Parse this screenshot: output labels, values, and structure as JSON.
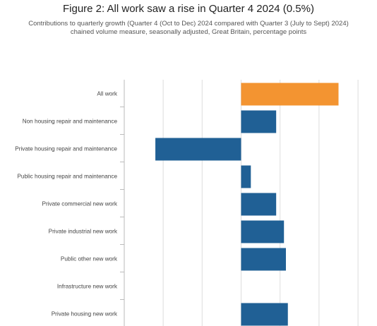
{
  "header": {
    "title": "Figure 2: All work saw a rise in Quarter 4 2024 (0.5%)",
    "subtitle_line1": "Contributions to quarterly growth (Quarter 4 (Oct to Dec) 2024 compared with Quarter 3 (July to Sept) 2024)",
    "subtitle_line2": "chained volume measure, seasonally adjusted, Great Britain, percentage points"
  },
  "colors": {
    "highlight": "#F39431",
    "bar": "#206095",
    "grid": "#dddddd",
    "axis": "#bbbbbb"
  },
  "chart_data": {
    "type": "bar",
    "orientation": "horizontal",
    "title": "Figure 2: All work saw a rise in Quarter 4 2024 (0.5%)",
    "categories": [
      "All work",
      "Non housing repair and maintenance",
      "Private housing repair and maintenance",
      "Public housing repair and maintenance",
      "Private commercial new work",
      "Private industrial new work",
      "Public other new work",
      "Infrastructure new work",
      "Private housing new work"
    ],
    "values": [
      0.5,
      0.18,
      -0.44,
      0.05,
      0.18,
      0.22,
      0.23,
      0.0,
      0.24
    ],
    "highlight_index": 0,
    "xlim": [
      -0.62,
      0.62
    ],
    "gridlines": [
      -0.4,
      -0.2,
      0,
      0.2,
      0.4,
      0.6
    ],
    "grid": true,
    "legend": false
  }
}
